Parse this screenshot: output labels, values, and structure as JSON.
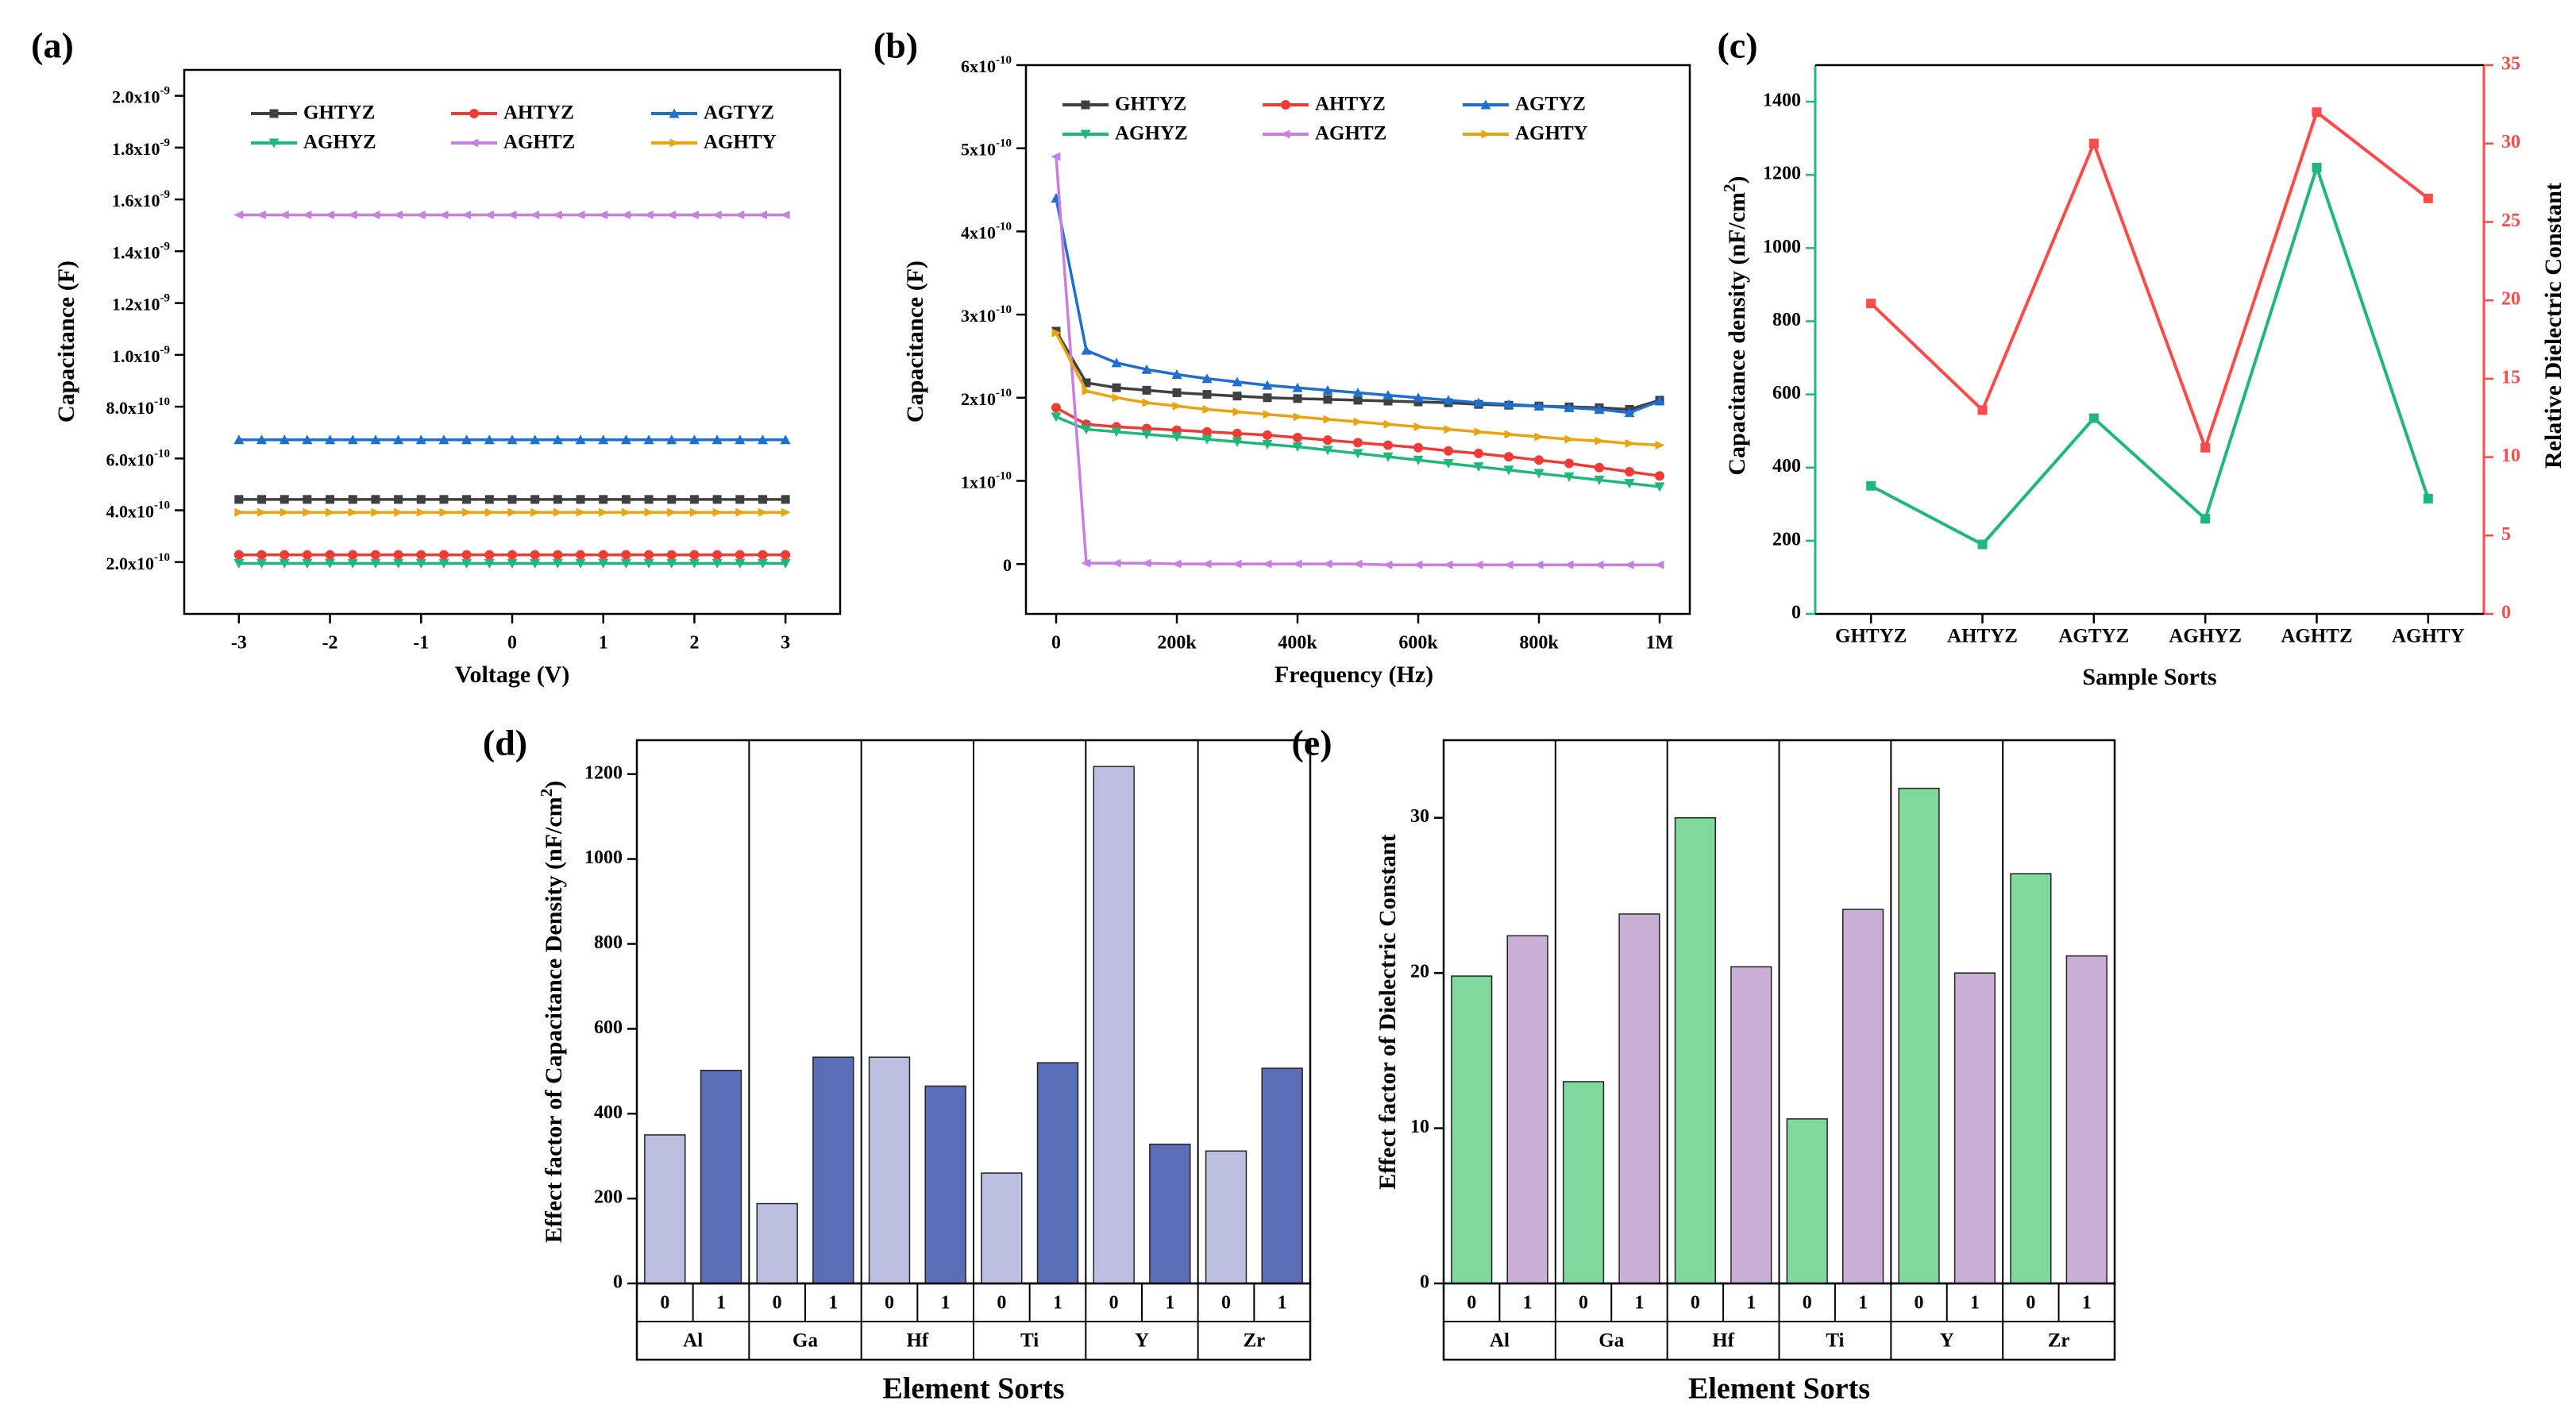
{
  "colors": {
    "GHTYZ": "#404040",
    "AHTYZ": "#ef3b36",
    "AGTYZ": "#1f6fd1",
    "AGHYZ": "#1fb87a",
    "AGHTZ": "#c77fe0",
    "AGHTY": "#e8a413",
    "density_line": "#1fb87a",
    "dielectric_line": "#ff4a4a",
    "d_light": "#bdbfe0",
    "d_dark": "#5b6eb8",
    "e_green": "#7fd99c",
    "e_purple": "#c9aed6"
  },
  "chart_data": [
    {
      "id": "a",
      "panel_label": "(a)",
      "type": "line",
      "xlabel": "Voltage  (V)",
      "ylabel": "Capacitance (F)",
      "xlim": [
        -3.6,
        3.6
      ],
      "ylim": [
        0,
        2.1e-09
      ],
      "x_ticks": [
        -3,
        -2,
        -1,
        0,
        1,
        2,
        3
      ],
      "x_tick_labels": [
        "-3",
        "-2",
        "-1",
        "0",
        "1",
        "2",
        "3"
      ],
      "y_ticks": [
        2e-10,
        4e-10,
        6e-10,
        8e-10,
        1e-09,
        1.2e-09,
        1.4e-09,
        1.6e-09,
        1.8e-09,
        2e-09
      ],
      "y_tick_labels": [
        {
          "base": "2.0x10",
          "exp": "-10"
        },
        {
          "base": "4.0x10",
          "exp": "-10"
        },
        {
          "base": "6.0x10",
          "exp": "-10"
        },
        {
          "base": "8.0x10",
          "exp": "-10"
        },
        {
          "base": "1.0x10",
          "exp": "-9"
        },
        {
          "base": "1.2x10",
          "exp": "-9"
        },
        {
          "base": "1.4x10",
          "exp": "-9"
        },
        {
          "base": "1.6x10",
          "exp": "-9"
        },
        {
          "base": "1.8x10",
          "exp": "-9"
        },
        {
          "base": "2.0x10",
          "exp": "-9"
        }
      ],
      "x": [
        -3,
        -2.75,
        -2.5,
        -2.25,
        -2,
        -1.75,
        -1.5,
        -1.25,
        -1,
        -0.75,
        -0.5,
        -0.25,
        0,
        0.25,
        0.5,
        0.75,
        1,
        1.25,
        1.5,
        1.75,
        2,
        2.25,
        2.5,
        2.75,
        3
      ],
      "series": [
        {
          "name": "GHTYZ",
          "constant": 4.42e-10
        },
        {
          "name": "AHTYZ",
          "constant": 2.28e-10
        },
        {
          "name": "AGTYZ",
          "constant": 6.72e-10
        },
        {
          "name": "AGHYZ",
          "constant": 1.95e-10
        },
        {
          "name": "AGHTZ",
          "constant": 1.54e-09
        },
        {
          "name": "AGHTY",
          "constant": 3.92e-10
        }
      ]
    },
    {
      "id": "b",
      "panel_label": "(b)",
      "type": "line",
      "xlabel": "Frequency (Hz)",
      "ylabel": "Capacitance (F)",
      "xlim": [
        -50000,
        1050000
      ],
      "ylim": [
        -6e-11,
        6e-10
      ],
      "x_ticks": [
        0,
        200000,
        400000,
        600000,
        800000,
        1000000
      ],
      "x_tick_labels": [
        "0",
        "200k",
        "400k",
        "600k",
        "800k",
        "1M"
      ],
      "y_ticks": [
        0,
        1e-10,
        2e-10,
        3e-10,
        4e-10,
        5e-10,
        6e-10
      ],
      "y_tick_labels": [
        {
          "base": "0",
          "exp": ""
        },
        {
          "base": "1x10",
          "exp": "-10"
        },
        {
          "base": "2x10",
          "exp": "-10"
        },
        {
          "base": "3x10",
          "exp": "-10"
        },
        {
          "base": "4x10",
          "exp": "-10"
        },
        {
          "base": "5x10",
          "exp": "-10"
        },
        {
          "base": "6x10",
          "exp": "-10"
        }
      ],
      "x": [
        0,
        50000,
        100000,
        150000,
        200000,
        250000,
        300000,
        350000,
        400000,
        450000,
        500000,
        550000,
        600000,
        650000,
        700000,
        750000,
        800000,
        850000,
        900000,
        950000,
        1000000
      ],
      "series": [
        {
          "name": "GHTYZ",
          "values": [
            2.8e-10,
            2.18e-10,
            2.12e-10,
            2.09e-10,
            2.06e-10,
            2.04e-10,
            2.02e-10,
            2e-10,
            1.99e-10,
            1.98e-10,
            1.97e-10,
            1.96e-10,
            1.95e-10,
            1.94e-10,
            1.92e-10,
            1.91e-10,
            1.9e-10,
            1.89e-10,
            1.88e-10,
            1.86e-10,
            1.97e-10
          ]
        },
        {
          "name": "AHTYZ",
          "values": [
            1.88e-10,
            1.68e-10,
            1.65e-10,
            1.63e-10,
            1.61e-10,
            1.59e-10,
            1.57e-10,
            1.55e-10,
            1.52e-10,
            1.49e-10,
            1.46e-10,
            1.43e-10,
            1.4e-10,
            1.36e-10,
            1.33e-10,
            1.29e-10,
            1.25e-10,
            1.21e-10,
            1.16e-10,
            1.11e-10,
            1.06e-10
          ]
        },
        {
          "name": "AGTYZ",
          "values": [
            4.4e-10,
            2.57e-10,
            2.42e-10,
            2.34e-10,
            2.28e-10,
            2.23e-10,
            2.19e-10,
            2.15e-10,
            2.12e-10,
            2.09e-10,
            2.06e-10,
            2.03e-10,
            2e-10,
            1.97e-10,
            1.94e-10,
            1.92e-10,
            1.9e-10,
            1.88e-10,
            1.86e-10,
            1.82e-10,
            1.96e-10
          ]
        },
        {
          "name": "AGHYZ",
          "values": [
            1.77e-10,
            1.62e-10,
            1.59e-10,
            1.56e-10,
            1.53e-10,
            1.5e-10,
            1.47e-10,
            1.44e-10,
            1.41e-10,
            1.37e-10,
            1.33e-10,
            1.29e-10,
            1.25e-10,
            1.21e-10,
            1.17e-10,
            1.13e-10,
            1.09e-10,
            1.05e-10,
            1.01e-10,
            9.7e-11,
            9.3e-11
          ]
        },
        {
          "name": "AGHTZ",
          "values": [
            4.9e-10,
            1e-12,
            1e-12,
            1e-12,
            0,
            0,
            0,
            0,
            0,
            0,
            0,
            -1e-12,
            -1e-12,
            -1e-12,
            -1e-12,
            -1e-12,
            -1e-12,
            -1e-12,
            -1e-12,
            -1e-12,
            -1e-12
          ]
        },
        {
          "name": "AGHTY",
          "values": [
            2.78e-10,
            2.08e-10,
            2e-10,
            1.94e-10,
            1.9e-10,
            1.86e-10,
            1.83e-10,
            1.8e-10,
            1.77e-10,
            1.74e-10,
            1.71e-10,
            1.68e-10,
            1.65e-10,
            1.62e-10,
            1.59e-10,
            1.56e-10,
            1.53e-10,
            1.5e-10,
            1.48e-10,
            1.45e-10,
            1.43e-10
          ]
        }
      ]
    },
    {
      "id": "c",
      "panel_label": "(c)",
      "type": "line",
      "xlabel": "Sample Sorts",
      "ylabel": "Capacitance density (nF/cm",
      "ylabel_sup": "2",
      "ylabel_tail": ")",
      "ylabel_right": "Relative Dielectric Constant",
      "categories": [
        "GHTYZ",
        "AHTYZ",
        "AGTYZ",
        "AGHYZ",
        "AGHTZ",
        "AGHTY"
      ],
      "ylim": [
        0,
        1500
      ],
      "y_ticks": [
        0,
        200,
        400,
        600,
        800,
        1000,
        1200,
        1400
      ],
      "y_tick_labels": [
        "0",
        "200",
        "400",
        "600",
        "800",
        "1000",
        "1200",
        "1400"
      ],
      "y2lim": [
        0,
        35
      ],
      "y2_ticks": [
        0,
        5,
        10,
        15,
        20,
        25,
        30,
        35
      ],
      "y2_tick_labels": [
        "0",
        "5",
        "10",
        "15",
        "20",
        "25",
        "30",
        "35"
      ],
      "series": [
        {
          "name": "Capacitance density",
          "axis": "left",
          "values": [
            350,
            190,
            535,
            260,
            1220,
            315
          ]
        },
        {
          "name": "Relative Dielectric Constant",
          "axis": "right",
          "values": [
            19.8,
            13.0,
            30.0,
            10.6,
            32.0,
            26.5
          ]
        }
      ]
    },
    {
      "id": "d",
      "panel_label": "(d)",
      "type": "bar",
      "xlabel": "Element Sorts",
      "ylabel": "Effect factor of Capacitance Density (nF/cm",
      "ylabel_sup": "2",
      "ylabel_tail": ")",
      "ylim": [
        0,
        1280
      ],
      "y_ticks": [
        0,
        200,
        400,
        600,
        800,
        1000,
        1200
      ],
      "y_tick_labels": [
        "0",
        "200",
        "400",
        "600",
        "800",
        "1000",
        "1200"
      ],
      "groups": [
        "Al",
        "Ga",
        "Hf",
        "Ti",
        "Y",
        "Zr"
      ],
      "subcategories": [
        "0",
        "1"
      ],
      "values": [
        [
          350,
          502
        ],
        [
          188,
          533
        ],
        [
          533,
          465
        ],
        [
          260,
          520
        ],
        [
          1218,
          328
        ],
        [
          312,
          507
        ]
      ]
    },
    {
      "id": "e",
      "panel_label": "(e)",
      "type": "bar",
      "xlabel": "Element Sorts",
      "ylabel": "Effect factor of Dielectric Constant",
      "ylim": [
        0,
        35
      ],
      "y_ticks": [
        0,
        10,
        20,
        30
      ],
      "y_tick_labels": [
        "0",
        "10",
        "20",
        "30"
      ],
      "groups": [
        "Al",
        "Ga",
        "Hf",
        "Ti",
        "Y",
        "Zr"
      ],
      "subcategories": [
        "0",
        "1"
      ],
      "values": [
        [
          19.8,
          22.4
        ],
        [
          13.0,
          23.8
        ],
        [
          30.0,
          20.4
        ],
        [
          10.6,
          24.1
        ],
        [
          31.9,
          20.0
        ],
        [
          26.4,
          21.1
        ]
      ]
    }
  ]
}
